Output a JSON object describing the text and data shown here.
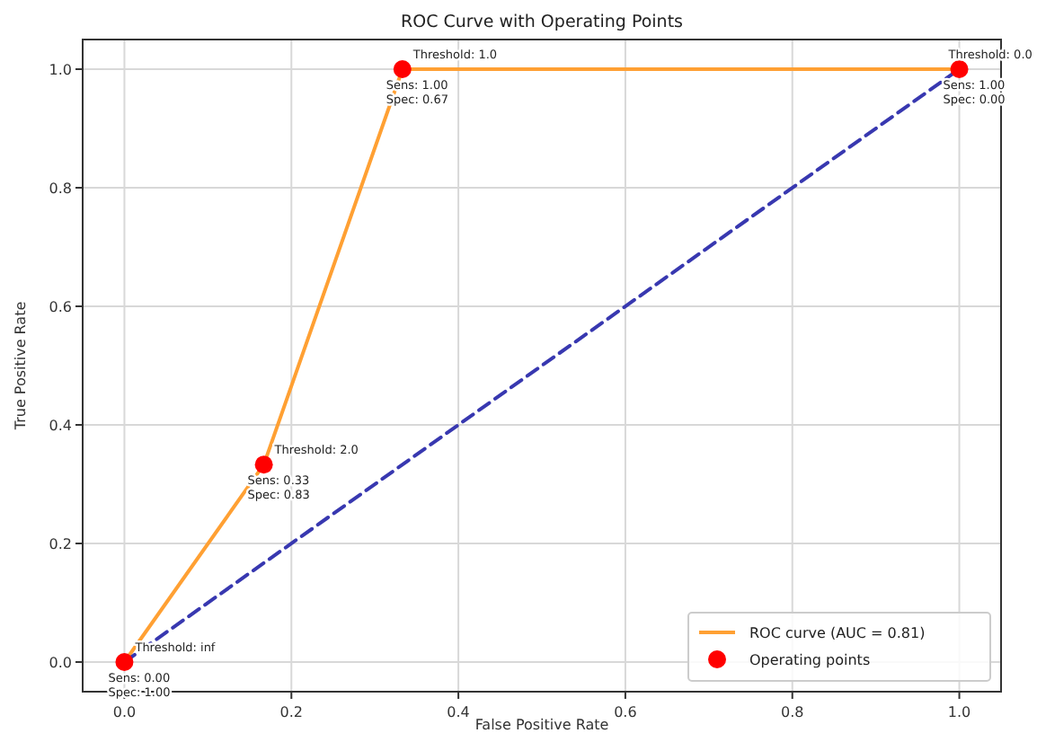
{
  "chart_data": {
    "type": "line",
    "title": "ROC Curve with Operating Points",
    "xlabel": "False Positive Rate",
    "ylabel": "True Positive Rate",
    "x": [
      0,
      0.167,
      0.333,
      1.0
    ],
    "series": [
      {
        "name": "ROC curve (AUC = 0.81)",
        "color": "#ffa033",
        "values": [
          0,
          0.333,
          1.0,
          1.0
        ],
        "line_style": "solid",
        "marker": "none"
      },
      {
        "color": "#3838b0",
        "x": [
          0,
          1
        ],
        "values": [
          0,
          1
        ],
        "line_style": "dashed",
        "marker": "none"
      },
      {
        "name": "Operating points",
        "type": "scatter",
        "color": "#ff0000",
        "values": [
          0,
          0.333,
          1.0,
          1.0
        ],
        "marker": "circle"
      }
    ],
    "annotations": [
      {
        "text": "Threshold: inf",
        "x": 0,
        "y": 0
      },
      {
        "text": "Sens: 0.00\nSpec: 1.00",
        "x": 0,
        "y": 0
      },
      {
        "text": "Threshold: 2.0",
        "x": 0.167,
        "y": 0.333
      },
      {
        "text": "Sens: 0.33\nSpec: 0.83",
        "x": 0.167,
        "y": 0.333
      },
      {
        "text": "Threshold: 1.0",
        "x": 0.333,
        "y": 1.0
      },
      {
        "text": "Sens: 1.00\nSpec: 0.67",
        "x": 0.333,
        "y": 1.0
      },
      {
        "text": "Threshold: 0.0",
        "x": 1.0,
        "y": 1.0
      },
      {
        "text": "Sens: 1.00\nSpec: 0.00",
        "x": 1.0,
        "y": 1.0
      }
    ],
    "xlim": [
      -0.05,
      1.05
    ],
    "ylim": [
      -0.05,
      1.05
    ],
    "xticks": [
      {
        "value": 0,
        "label": "0.0"
      },
      {
        "value": 0.2,
        "label": "0.2"
      },
      {
        "value": 0.4,
        "label": "0.4"
      },
      {
        "value": 0.6,
        "label": "0.6"
      },
      {
        "value": 0.8,
        "label": "0.8"
      },
      {
        "value": 1.0,
        "label": "1.0"
      }
    ],
    "yticks": [
      {
        "value": 0,
        "label": "0.0"
      },
      {
        "value": 0.2,
        "label": "0.2"
      },
      {
        "value": 0.4,
        "label": "0.4"
      },
      {
        "value": 0.6,
        "label": "0.6"
      },
      {
        "value": 0.8,
        "label": "0.8"
      },
      {
        "value": 1.0,
        "label": "1.0"
      }
    ],
    "grid": true,
    "legend": "bottom right"
  }
}
